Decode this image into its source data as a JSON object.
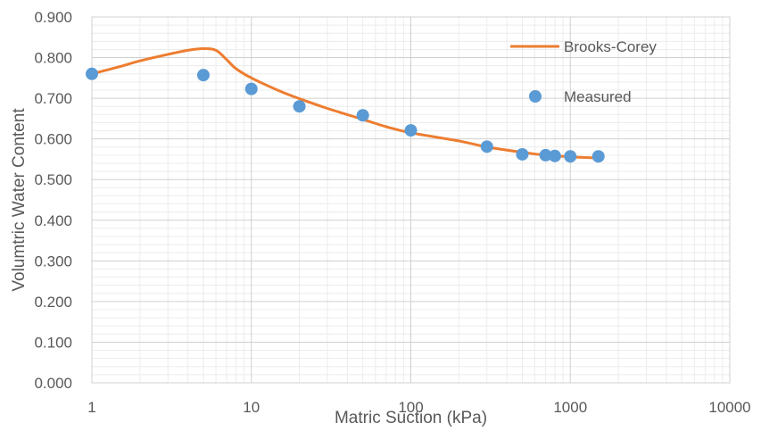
{
  "chart_data": {
    "type": "scatter",
    "xlabel": "Matric Suction (kPa)",
    "ylabel": "Volumtric Water Content",
    "xscale": "log",
    "xlim": [
      1,
      10000
    ],
    "ylim": [
      0,
      0.9
    ],
    "x_ticks": [
      "1",
      "10",
      "100",
      "1000",
      "10000"
    ],
    "y_ticks": [
      "0.000",
      "0.100",
      "0.200",
      "0.300",
      "0.400",
      "0.500",
      "0.600",
      "0.700",
      "0.800",
      "0.900"
    ],
    "grid": true,
    "legend_position": "top-right",
    "series": [
      {
        "name": "Brooks-Corey",
        "kind": "line",
        "color": "#ED7D31",
        "x": [
          1,
          1.5,
          2,
          3,
          4,
          5,
          6,
          7,
          8,
          10,
          15,
          20,
          30,
          50,
          70,
          100,
          200,
          300,
          500,
          700,
          1000,
          1500
        ],
        "y": [
          0.76,
          0.778,
          0.792,
          0.808,
          0.818,
          0.822,
          0.818,
          0.795,
          0.773,
          0.75,
          0.718,
          0.699,
          0.675,
          0.648,
          0.63,
          0.615,
          0.595,
          0.58,
          0.567,
          0.56,
          0.556,
          0.553
        ]
      },
      {
        "name": "Measured",
        "kind": "scatter",
        "color": "#5B9BD5",
        "x": [
          1,
          5,
          10,
          20,
          50,
          100,
          300,
          500,
          700,
          800,
          1000,
          1500
        ],
        "y": [
          0.76,
          0.757,
          0.723,
          0.68,
          0.658,
          0.621,
          0.581,
          0.562,
          0.56,
          0.558,
          0.557,
          0.557
        ]
      }
    ]
  }
}
